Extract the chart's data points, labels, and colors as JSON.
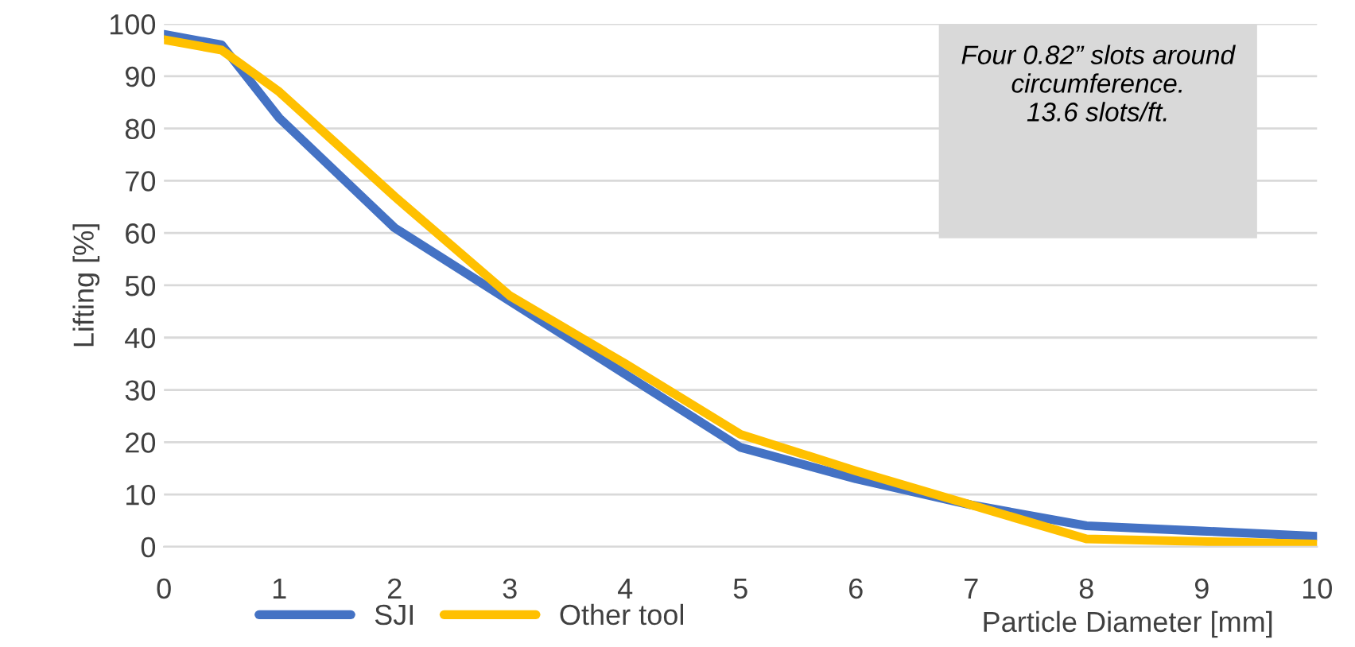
{
  "chart_data": {
    "type": "line",
    "xlabel": "Particle Diameter [mm]",
    "ylabel": "Lifting [%]",
    "x": [
      0,
      0.5,
      1,
      2,
      3,
      4,
      5,
      6,
      7,
      8,
      9,
      10
    ],
    "series": [
      {
        "name": "SJI",
        "color": "#4472c4",
        "values": [
          98,
          96,
          82,
          61,
          47,
          33,
          19,
          13,
          8,
          4,
          3,
          2
        ]
      },
      {
        "name": "Other tool",
        "color": "#ffc000",
        "values": [
          97,
          95,
          87,
          67,
          48,
          35,
          21.5,
          14.5,
          8,
          1.5,
          1,
          0.5
        ]
      }
    ],
    "xlim": [
      0,
      10
    ],
    "xticks": [
      0,
      1,
      2,
      3,
      4,
      5,
      6,
      7,
      8,
      9,
      10
    ],
    "ylim": [
      0,
      100
    ],
    "yticks": [
      0,
      10,
      20,
      30,
      40,
      50,
      60,
      70,
      80,
      90,
      100
    ],
    "grid": "y",
    "legend": "bottom",
    "marker": "none",
    "line_style": "solid",
    "annotations": [
      "Four 0.82” slots around\ncircumference.\n13.6 slots/ft."
    ]
  }
}
